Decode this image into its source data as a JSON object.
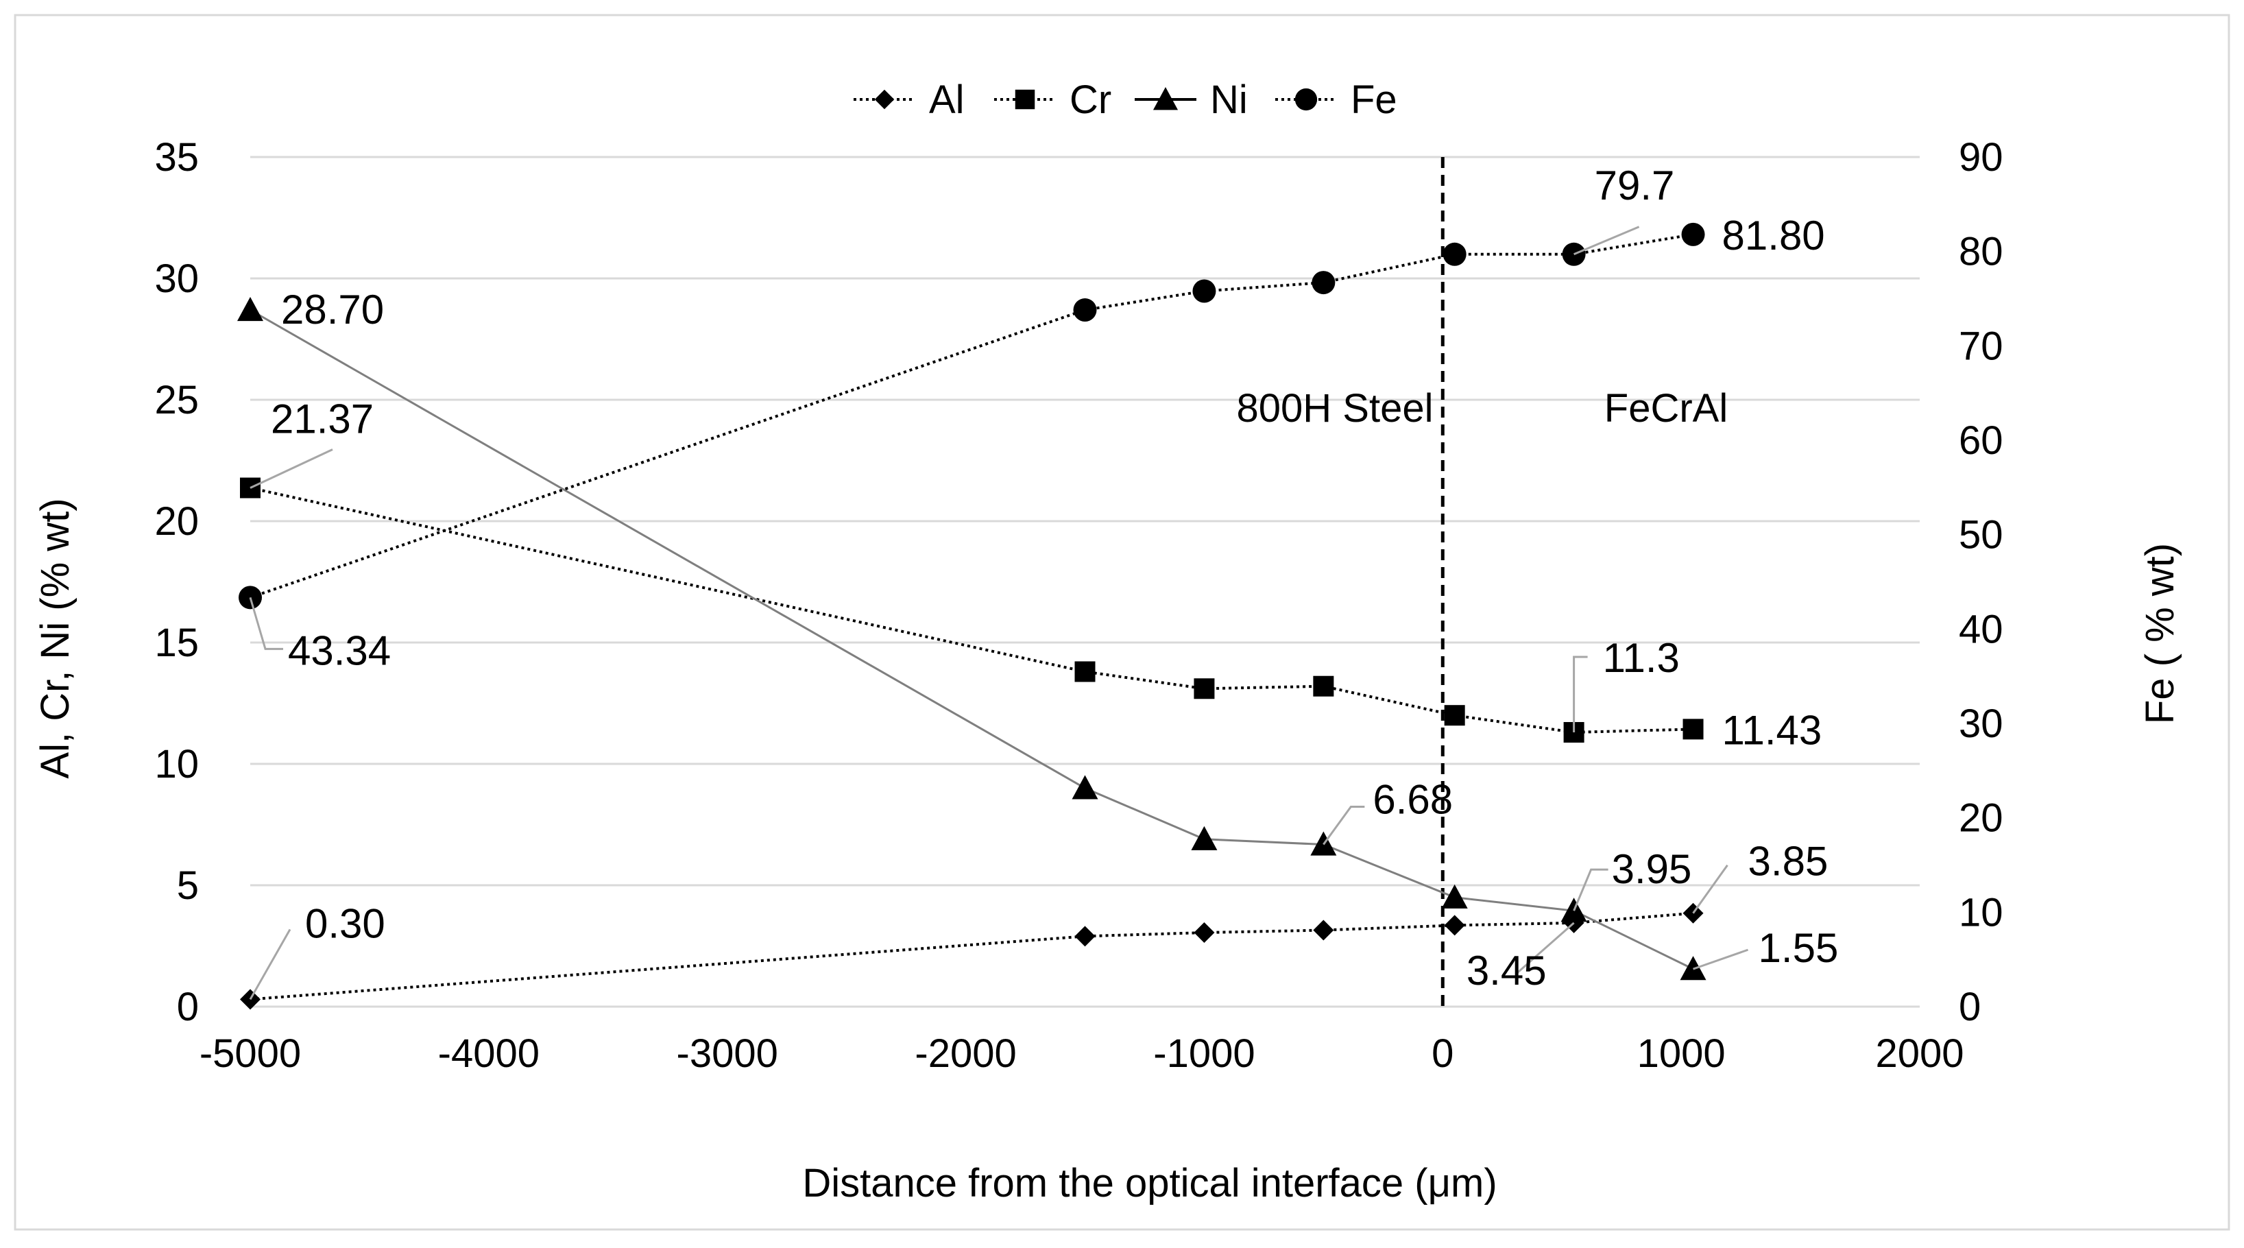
{
  "chart_data": {
    "type": "line",
    "title": "",
    "xlabel": "Distance from the optical interface (μm)",
    "ylabel_left": "Al, Cr, Ni  (% wt)",
    "ylabel_right": "Fe ( % wt)",
    "xlim": [
      -5000,
      2000
    ],
    "ylim_left": [
      0,
      35
    ],
    "ylim_right": [
      0,
      90
    ],
    "xticks": [
      "-5000",
      "-4000",
      "-3000",
      "-2000",
      "-1000",
      "0",
      "1000",
      "2000"
    ],
    "xtick_values": [
      -5000,
      -4000,
      -3000,
      -2000,
      -1000,
      0,
      1000,
      2000
    ],
    "yticks_left": [
      "0",
      "5",
      "10",
      "15",
      "20",
      "25",
      "30",
      "35"
    ],
    "ytick_left_values": [
      0,
      5,
      10,
      15,
      20,
      25,
      30,
      35
    ],
    "yticks_right": [
      "0",
      "10",
      "20",
      "30",
      "40",
      "50",
      "60",
      "70",
      "80",
      "90"
    ],
    "ytick_right_values": [
      0,
      10,
      20,
      30,
      40,
      50,
      60,
      70,
      80,
      90
    ],
    "grid": true,
    "legend_position": "top-center",
    "x": [
      -5000,
      -1500,
      -1000,
      -500,
      50,
      550,
      1050
    ],
    "series": [
      {
        "name": "Al",
        "marker": "diamond",
        "line": "dotted",
        "axis": "left",
        "values": [
          0.3,
          2.9,
          3.05,
          3.15,
          3.35,
          3.45,
          3.85
        ]
      },
      {
        "name": "Cr",
        "marker": "square",
        "line": "dotted",
        "axis": "left",
        "values": [
          21.37,
          13.8,
          13.1,
          13.2,
          12.0,
          11.3,
          11.43
        ]
      },
      {
        "name": "Ni",
        "marker": "triangle",
        "line": "solid",
        "axis": "left",
        "values": [
          28.7,
          9.0,
          6.9,
          6.68,
          4.5,
          3.95,
          1.55
        ]
      },
      {
        "name": "Fe",
        "marker": "circle",
        "line": "dotted",
        "axis": "right",
        "values": [
          43.34,
          73.8,
          75.8,
          76.7,
          79.7,
          79.7,
          81.8
        ]
      }
    ],
    "data_labels": [
      {
        "text": "0.30",
        "series": "Al",
        "index": 0
      },
      {
        "text": "3.45",
        "series": "Al",
        "index": 5
      },
      {
        "text": "3.85",
        "series": "Al",
        "index": 6
      },
      {
        "text": "21.37",
        "series": "Cr",
        "index": 0
      },
      {
        "text": "11.3",
        "series": "Cr",
        "index": 5
      },
      {
        "text": "11.43",
        "series": "Cr",
        "index": 6
      },
      {
        "text": "28.70",
        "series": "Ni",
        "index": 0
      },
      {
        "text": "6.68",
        "series": "Ni",
        "index": 3
      },
      {
        "text": "3.95",
        "series": "Ni",
        "index": 5
      },
      {
        "text": "1.55",
        "series": "Ni",
        "index": 6
      },
      {
        "text": "43.34",
        "series": "Fe",
        "index": 0
      },
      {
        "text": "79.7",
        "series": "Fe",
        "index": 5
      },
      {
        "text": "81.80",
        "series": "Fe",
        "index": 6
      }
    ],
    "interface_x": 0,
    "region_labels": [
      "800H Steel",
      "FeCrAl"
    ]
  },
  "colors": {
    "series": "#000000",
    "ni_line": "#7f7f7f",
    "grid": "#d9d9d9",
    "leader": "#a6a6a6",
    "frame": "#d9d9d9"
  }
}
